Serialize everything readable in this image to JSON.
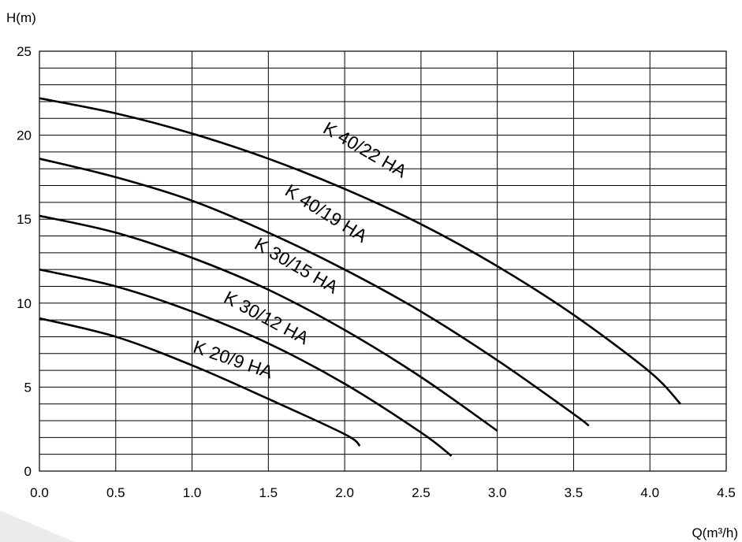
{
  "chart_data": {
    "type": "line",
    "title": "",
    "xlabel": "Q(m³/h)",
    "ylabel": "H(m)",
    "xlim": [
      0,
      4.5
    ],
    "ylim": [
      0,
      25
    ],
    "x_ticks": [
      "0.0",
      "0.5",
      "1.0",
      "1.5",
      "2.0",
      "2.5",
      "3.0",
      "3.5",
      "4.0",
      "4.5"
    ],
    "y_ticks": [
      "0",
      "5",
      "10",
      "15",
      "20",
      "25"
    ],
    "grid": {
      "x_step": 0.5,
      "y_step": 1
    },
    "series": [
      {
        "name": "K 20/9 HA",
        "x": [
          0,
          0.5,
          1.0,
          1.5,
          2.0,
          2.1
        ],
        "y": [
          9.1,
          8.0,
          6.3,
          4.3,
          2.2,
          1.5
        ]
      },
      {
        "name": "K 30/12 HA",
        "x": [
          0,
          0.5,
          1.0,
          1.5,
          2.0,
          2.5,
          2.7
        ],
        "y": [
          12.0,
          11.0,
          9.5,
          7.6,
          5.2,
          2.3,
          0.9
        ]
      },
      {
        "name": "K 30/15 HA",
        "x": [
          0,
          0.5,
          1.0,
          1.5,
          2.0,
          2.5,
          3.0
        ],
        "y": [
          15.2,
          14.2,
          12.7,
          10.8,
          8.4,
          5.6,
          2.4
        ]
      },
      {
        "name": "K 40/19 HA",
        "x": [
          0,
          0.5,
          1.0,
          1.5,
          2.0,
          2.5,
          3.0,
          3.5,
          3.6
        ],
        "y": [
          18.6,
          17.5,
          16.1,
          14.2,
          12.0,
          9.5,
          6.6,
          3.4,
          2.7
        ]
      },
      {
        "name": "K 40/22 HA",
        "x": [
          0,
          0.5,
          1.0,
          1.5,
          2.0,
          2.5,
          3.0,
          3.5,
          4.0,
          4.2
        ],
        "y": [
          22.2,
          21.3,
          20.1,
          18.6,
          16.8,
          14.7,
          12.2,
          9.3,
          5.9,
          4.0
        ]
      }
    ],
    "series_labels": [
      {
        "text": "K 20/9 HA",
        "at": [
          1.0,
          7.1
        ],
        "angle": 19
      },
      {
        "text": "K 30/12 HA",
        "at": [
          1.2,
          10.1
        ],
        "angle": 28
      },
      {
        "text": "K 30/15 HA",
        "at": [
          1.4,
          13.3
        ],
        "angle": 30
      },
      {
        "text": "K 40/19 HA",
        "at": [
          1.6,
          16.5
        ],
        "angle": 32
      },
      {
        "text": "K 40/22 HA",
        "at": [
          1.85,
          20.2
        ],
        "angle": 30
      }
    ]
  }
}
